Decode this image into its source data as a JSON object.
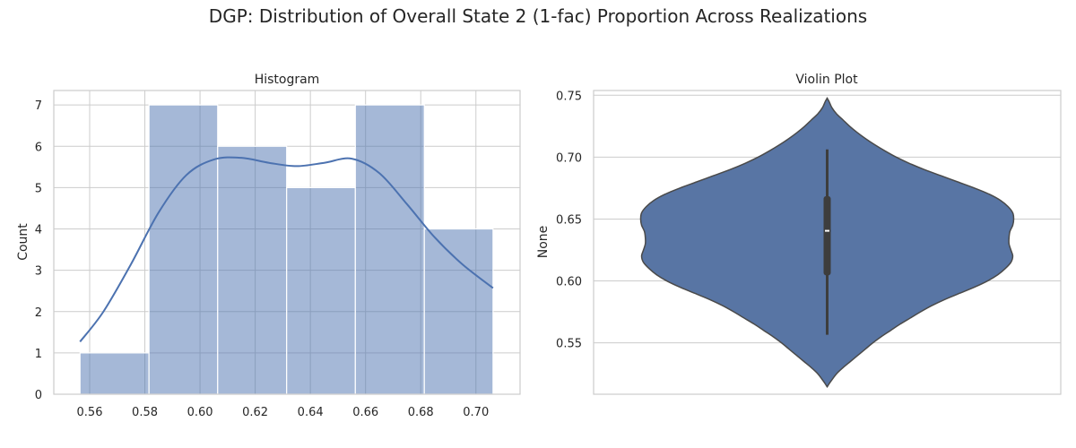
{
  "figure_title": "DGP: Distribution of Overall State 2 (1-fac) Proportion Across Realizations",
  "colors": {
    "hist_fill": "#4c72b0",
    "hist_alpha": 0.5,
    "kde_line": "#4c72b0",
    "violin_fill": "#5875a4",
    "violin_edge": "#4a4a4a",
    "grid": "#cccccc",
    "box": "#3d3d3d",
    "median": "#ffffff"
  },
  "chart_data": [
    {
      "type": "bar",
      "subtype": "histogram_with_kde",
      "title": "Histogram",
      "xlabel": "",
      "ylabel": "Count",
      "bins": [
        {
          "x0": 0.5565,
          "x1": 0.5815,
          "count": 1
        },
        {
          "x0": 0.5815,
          "x1": 0.6064,
          "count": 7
        },
        {
          "x0": 0.6064,
          "x1": 0.6314,
          "count": 6
        },
        {
          "x0": 0.6314,
          "x1": 0.6563,
          "count": 5
        },
        {
          "x0": 0.6563,
          "x1": 0.6813,
          "count": 7
        },
        {
          "x0": 0.6813,
          "x1": 0.7062,
          "count": 4
        }
      ],
      "kde": {
        "x": [
          0.5565,
          0.565,
          0.575,
          0.585,
          0.595,
          0.605,
          0.615,
          0.625,
          0.635,
          0.645,
          0.655,
          0.665,
          0.675,
          0.685,
          0.695,
          0.7062
        ],
        "y": [
          1.27,
          2.0,
          3.15,
          4.4,
          5.3,
          5.68,
          5.72,
          5.6,
          5.52,
          5.6,
          5.7,
          5.35,
          4.6,
          3.8,
          3.15,
          2.57
        ]
      },
      "xlim": [
        0.547,
        0.716
      ],
      "ylim": [
        0,
        7.35
      ],
      "xticks": [
        0.56,
        0.58,
        0.6,
        0.62,
        0.64,
        0.66,
        0.68,
        0.7
      ],
      "xtick_labels": [
        "0.56",
        "0.58",
        "0.60",
        "0.62",
        "0.64",
        "0.66",
        "0.68",
        "0.70"
      ],
      "yticks": [
        0,
        1,
        2,
        3,
        4,
        5,
        6,
        7
      ],
      "ytick_labels": [
        "0",
        "1",
        "2",
        "3",
        "4",
        "5",
        "6",
        "7"
      ],
      "grid": true
    },
    {
      "type": "violin",
      "title": "Violin Plot",
      "xlabel": "",
      "ylabel": "None",
      "ylim": [
        0.5085,
        0.7538
      ],
      "yticks": [
        0.55,
        0.6,
        0.65,
        0.7,
        0.75
      ],
      "ytick_labels": [
        "0.55",
        "0.60",
        "0.65",
        "0.70",
        "0.75"
      ],
      "grid": true,
      "density": {
        "y": [
          0.5145,
          0.519,
          0.525,
          0.53,
          0.535,
          0.54,
          0.545,
          0.55,
          0.555,
          0.56,
          0.565,
          0.57,
          0.575,
          0.58,
          0.585,
          0.59,
          0.595,
          0.6,
          0.605,
          0.61,
          0.615,
          0.62,
          0.625,
          0.63,
          0.635,
          0.64,
          0.645,
          0.65,
          0.655,
          0.66,
          0.665,
          0.67,
          0.675,
          0.68,
          0.685,
          0.69,
          0.695,
          0.7,
          0.705,
          0.71,
          0.715,
          0.72,
          0.725,
          0.73,
          0.735,
          0.74,
          0.745,
          0.7475
        ],
        "width": [
          0,
          0.02,
          0.05,
          0.085,
          0.125,
          0.165,
          0.205,
          0.245,
          0.29,
          0.34,
          0.39,
          0.445,
          0.5,
          0.56,
          0.63,
          0.71,
          0.79,
          0.86,
          0.915,
          0.955,
          0.985,
          0.995,
          0.985,
          0.975,
          0.975,
          0.98,
          0.995,
          1.0,
          0.995,
          0.97,
          0.93,
          0.87,
          0.79,
          0.7,
          0.61,
          0.52,
          0.44,
          0.37,
          0.31,
          0.255,
          0.205,
          0.16,
          0.12,
          0.085,
          0.05,
          0.025,
          0.01,
          0
        ]
      },
      "box": {
        "q1": 0.6045,
        "median": 0.6405,
        "q3": 0.6685,
        "whisker_low": 0.5565,
        "whisker_high": 0.7062
      }
    }
  ]
}
